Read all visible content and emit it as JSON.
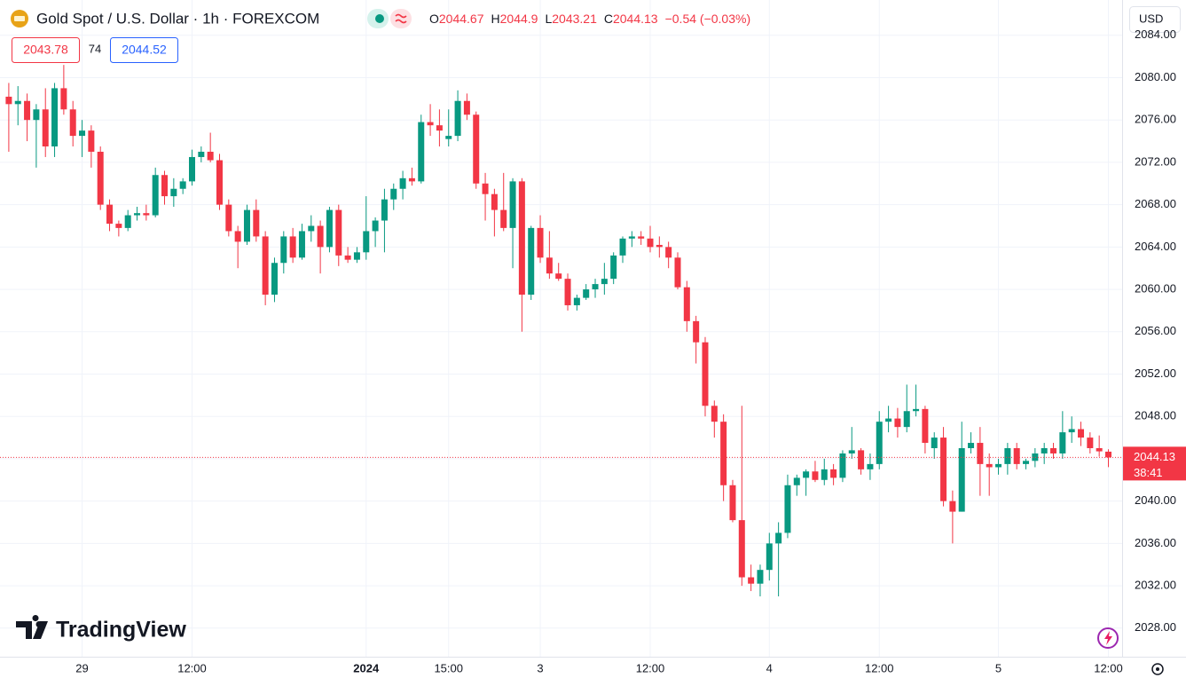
{
  "chart_data": {
    "type": "candlestick",
    "title": "Gold Spot / U.S. Dollar · 1h · FOREXCOM",
    "legend_labels": [
      "O",
      "H",
      "L",
      "C"
    ],
    "change_label": "−0.54 (−0.03%)",
    "bid": "2043.78",
    "spread": "74",
    "ask": "2044.52",
    "currency": "USD",
    "countdown": "38:41",
    "brand": "TradingView",
    "up_color": "#089981",
    "down_color": "#f23645",
    "grid": true,
    "ylim": [
      2025.3,
      2084.4
    ],
    "yticks": [
      {
        "value": 2028,
        "label": "2028.00"
      },
      {
        "value": 2032,
        "label": "2032.00"
      },
      {
        "value": 2036,
        "label": "2036.00"
      },
      {
        "value": 2040,
        "label": "2040.00"
      },
      {
        "value": 2044,
        "label": "2044.00"
      },
      {
        "value": 2048,
        "label": "2048.00"
      },
      {
        "value": 2052,
        "label": "2052.00"
      },
      {
        "value": 2056,
        "label": "2056.00"
      },
      {
        "value": 2060,
        "label": "2060.00"
      },
      {
        "value": 2064,
        "label": "2064.00"
      },
      {
        "value": 2068,
        "label": "2068.00"
      },
      {
        "value": 2072,
        "label": "2072.00"
      },
      {
        "value": 2076,
        "label": "2076.00"
      },
      {
        "value": 2080,
        "label": "2080.00"
      },
      {
        "value": 2084,
        "label": "2084.00"
      }
    ],
    "categories": [
      null,
      null,
      null,
      null,
      null,
      null,
      null,
      null,
      "29",
      null,
      null,
      null,
      null,
      null,
      null,
      null,
      null,
      null,
      null,
      null,
      "12:00",
      null,
      null,
      null,
      null,
      null,
      null,
      null,
      null,
      null,
      null,
      null,
      null,
      null,
      null,
      null,
      null,
      null,
      null,
      "2024",
      null,
      null,
      null,
      null,
      null,
      null,
      null,
      null,
      "15:00",
      null,
      null,
      null,
      null,
      null,
      null,
      null,
      null,
      null,
      "3",
      null,
      null,
      null,
      null,
      null,
      null,
      null,
      null,
      null,
      null,
      null,
      "12:00",
      null,
      null,
      null,
      null,
      null,
      null,
      null,
      null,
      null,
      null,
      null,
      null,
      "4",
      null,
      null,
      null,
      null,
      null,
      null,
      null,
      null,
      null,
      null,
      null,
      "12:00",
      null,
      null,
      null,
      null,
      null,
      null,
      null,
      null,
      null,
      null,
      null,
      null,
      "5",
      null,
      null,
      null,
      null,
      null,
      null,
      null,
      null,
      null,
      null,
      null,
      "12:00"
    ],
    "open": [
      2078.2,
      2077.5,
      2077.8,
      2076.0,
      2077.0,
      2073.5,
      2079.0,
      2077.0,
      2074.5,
      2075.0,
      2073.0,
      2068.0,
      2066.2,
      2065.8,
      2067.0,
      2067.2,
      2067.0,
      2070.8,
      2068.8,
      2069.5,
      2070.2,
      2072.5,
      2073.0,
      2072.2,
      2068.0,
      2065.5,
      2064.5,
      2067.5,
      2065.0,
      2059.5,
      2062.5,
      2065.0,
      2063.0,
      2065.5,
      2066.0,
      2064.0,
      2067.5,
      2063.2,
      2062.8,
      2063.5,
      2065.5,
      2066.5,
      2068.5,
      2069.5,
      2070.5,
      2070.2,
      2075.8,
      2075.5,
      2074.2,
      2074.5,
      2077.8,
      2076.5,
      2070.0,
      2069.0,
      2067.5,
      2065.8,
      2070.2,
      2059.5,
      2065.8,
      2063.0,
      2061.5,
      2061.0,
      2058.5,
      2059.2,
      2060.0,
      2060.5,
      2061.0,
      2063.2,
      2064.8,
      2065.0,
      2064.8,
      2064.2,
      2064.0,
      2063.0,
      2060.2,
      2057.0,
      2055.0,
      2049.0,
      2047.5,
      2041.5,
      2038.2,
      2032.8,
      2032.2,
      2033.5,
      2036.0,
      2037.0,
      2041.5,
      2042.2,
      2042.8,
      2042.0,
      2043.0,
      2042.2,
      2044.5,
      2044.8,
      2043.0,
      2043.5,
      2047.5,
      2047.8,
      2047.0,
      2048.5,
      2048.7,
      2045.0,
      2046.0,
      2040.0,
      2039.0,
      2045.0,
      2045.5,
      2043.5,
      2043.2,
      2043.5,
      2045.0,
      2043.5,
      2043.8,
      2044.5,
      2045.0,
      2044.5,
      2046.5,
      2046.8,
      2046.0,
      2045.0,
      2044.67
    ],
    "high": [
      2079.5,
      2079.2,
      2078.5,
      2077.5,
      2079.0,
      2079.5,
      2081.2,
      2077.8,
      2076.0,
      2075.5,
      2073.5,
      2068.5,
      2066.5,
      2067.5,
      2067.8,
      2068.0,
      2071.5,
      2071.2,
      2070.5,
      2070.5,
      2073.2,
      2073.5,
      2074.8,
      2072.8,
      2068.5,
      2066.0,
      2068.0,
      2068.5,
      2065.5,
      2063.0,
      2065.5,
      2065.8,
      2066.2,
      2067.0,
      2066.5,
      2067.8,
      2068.0,
      2064.0,
      2064.0,
      2068.8,
      2066.8,
      2069.5,
      2070.0,
      2071.2,
      2071.5,
      2076.5,
      2077.5,
      2077.0,
      2077.0,
      2078.8,
      2078.5,
      2076.8,
      2071.0,
      2069.5,
      2071.0,
      2070.5,
      2070.5,
      2066.0,
      2067.0,
      2065.5,
      2062.5,
      2061.5,
      2059.5,
      2060.5,
      2061.0,
      2062.5,
      2063.5,
      2065.0,
      2065.5,
      2065.5,
      2066.0,
      2065.0,
      2064.5,
      2063.5,
      2060.8,
      2057.5,
      2055.5,
      2049.5,
      2048.2,
      2042.0,
      2049.0,
      2034.0,
      2034.0,
      2037.0,
      2038.0,
      2042.5,
      2042.5,
      2043.0,
      2043.8,
      2044.0,
      2043.5,
      2044.8,
      2047.0,
      2045.0,
      2044.5,
      2048.5,
      2049.0,
      2048.8,
      2051.0,
      2051.0,
      2049.0,
      2046.5,
      2047.0,
      2041.0,
      2047.5,
      2046.5,
      2047.0,
      2044.5,
      2044.0,
      2045.5,
      2045.5,
      2044.0,
      2045.0,
      2045.5,
      2045.5,
      2048.5,
      2048.0,
      2047.5,
      2046.5,
      2046.2,
      2044.9
    ],
    "low": [
      2073.0,
      2075.5,
      2074.0,
      2071.5,
      2072.5,
      2072.5,
      2076.5,
      2073.5,
      2072.5,
      2071.5,
      2067.5,
      2065.5,
      2065.0,
      2065.5,
      2066.5,
      2066.5,
      2066.8,
      2068.0,
      2067.8,
      2069.0,
      2069.8,
      2072.0,
      2072.0,
      2067.5,
      2065.0,
      2062.0,
      2064.2,
      2064.5,
      2058.5,
      2058.8,
      2061.5,
      2062.5,
      2062.8,
      2064.5,
      2061.5,
      2063.5,
      2062.2,
      2062.5,
      2062.5,
      2062.8,
      2064.0,
      2063.5,
      2067.5,
      2068.5,
      2069.8,
      2070.0,
      2074.5,
      2073.5,
      2073.5,
      2074.0,
      2076.0,
      2069.5,
      2066.5,
      2065.0,
      2065.5,
      2062.0,
      2056.0,
      2059.0,
      2062.5,
      2061.0,
      2060.8,
      2058.0,
      2058.0,
      2059.0,
      2059.2,
      2059.5,
      2060.5,
      2062.5,
      2064.0,
      2064.2,
      2063.5,
      2063.0,
      2062.0,
      2060.0,
      2056.0,
      2053.0,
      2048.0,
      2046.0,
      2040.0,
      2038.0,
      2032.0,
      2031.5,
      2031.0,
      2032.5,
      2031.0,
      2036.5,
      2040.5,
      2040.5,
      2041.8,
      2041.5,
      2041.5,
      2041.8,
      2044.0,
      2042.5,
      2042.0,
      2043.0,
      2046.5,
      2046.0,
      2046.5,
      2048.0,
      2044.5,
      2044.0,
      2039.5,
      2036.0,
      2039.0,
      2044.5,
      2040.5,
      2040.5,
      2042.5,
      2042.5,
      2043.0,
      2043.0,
      2043.2,
      2043.5,
      2044.0,
      2044.0,
      2045.5,
      2045.2,
      2044.5,
      2044.2,
      2043.21
    ],
    "close": [
      2077.5,
      2077.8,
      2076.0,
      2077.0,
      2073.5,
      2079.0,
      2077.0,
      2074.5,
      2075.0,
      2073.0,
      2068.0,
      2066.2,
      2065.8,
      2067.0,
      2067.2,
      2067.0,
      2070.8,
      2068.8,
      2069.5,
      2070.2,
      2072.5,
      2073.0,
      2072.2,
      2068.0,
      2065.5,
      2064.5,
      2067.5,
      2065.0,
      2059.5,
      2062.5,
      2065.0,
      2063.0,
      2065.5,
      2066.0,
      2064.0,
      2067.5,
      2063.2,
      2062.8,
      2063.5,
      2065.5,
      2066.5,
      2068.5,
      2069.5,
      2070.5,
      2070.2,
      2075.8,
      2075.5,
      2075.0,
      2074.5,
      2077.8,
      2076.5,
      2070.0,
      2069.0,
      2067.5,
      2065.8,
      2070.2,
      2059.5,
      2065.8,
      2063.0,
      2061.5,
      2061.0,
      2058.5,
      2059.2,
      2060.0,
      2060.5,
      2061.0,
      2063.2,
      2064.8,
      2065.0,
      2064.8,
      2064.0,
      2064.0,
      2063.0,
      2060.2,
      2057.0,
      2055.0,
      2049.0,
      2047.5,
      2041.5,
      2038.2,
      2032.8,
      2032.2,
      2033.5,
      2036.0,
      2037.0,
      2041.5,
      2042.2,
      2042.8,
      2042.0,
      2043.0,
      2042.2,
      2044.5,
      2044.8,
      2043.0,
      2043.5,
      2047.5,
      2047.8,
      2047.0,
      2048.5,
      2048.7,
      2045.5,
      2046.0,
      2040.0,
      2039.0,
      2045.0,
      2045.5,
      2043.5,
      2043.2,
      2043.5,
      2045.0,
      2043.5,
      2043.8,
      2044.5,
      2045.0,
      2044.5,
      2046.5,
      2046.8,
      2046.0,
      2045.0,
      2044.7,
      2044.13
    ]
  }
}
